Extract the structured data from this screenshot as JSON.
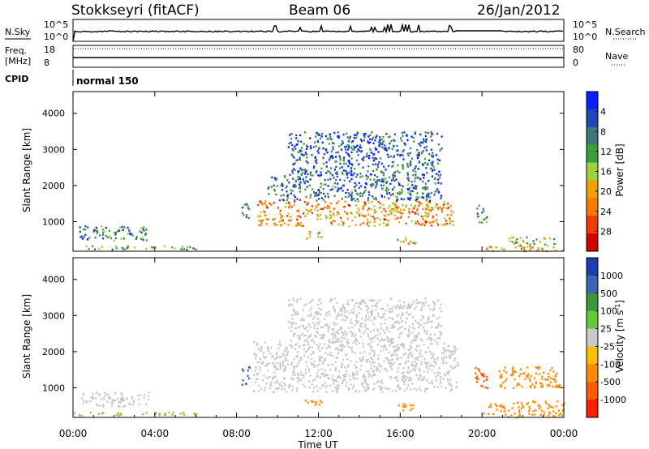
{
  "header": {
    "station": "Stokkseyri (fitACF)",
    "beam": "Beam 06",
    "date": "26/Jan/2012"
  },
  "panels": {
    "nsky": {
      "label": "N.Sky",
      "right_label": "N.Search",
      "ticks_left": [
        "10^5",
        "10^0"
      ],
      "ticks_right": [
        "10^5",
        "10^0"
      ]
    },
    "freq": {
      "label_top": "Freq.",
      "label_bottom": "[MHz]",
      "ticks_left": [
        "18",
        "8"
      ],
      "ticks_right": [
        "80",
        "0"
      ],
      "right_label": "Nave"
    },
    "cpid": {
      "label": "CPID",
      "value": "normal 150"
    }
  },
  "chart_data": [
    {
      "type": "heatmap",
      "title": "",
      "ylabel": "Slant Range [km]",
      "xlabel": "",
      "ylim": [
        180,
        4600
      ],
      "yticks": [
        1000,
        2000,
        3000,
        4000
      ],
      "xlim": [
        0,
        24
      ],
      "colorbar": {
        "label": "Power [dB]",
        "ticks": [
          "4",
          "8",
          "12",
          "16",
          "20",
          "24",
          "28"
        ],
        "colors": [
          "#0a1eff",
          "#1e46b4",
          "#3c7878",
          "#3ca03c",
          "#a0d23c",
          "#f0a000",
          "#ff7800",
          "#f03c00",
          "#d20000"
        ]
      },
      "regions": [
        {
          "t": [
            0.3,
            3.7
          ],
          "r": [
            500,
            900
          ],
          "v": 0.25
        },
        {
          "t": [
            0.0,
            6.0
          ],
          "r": [
            250,
            350
          ],
          "v": 0.35
        },
        {
          "t": [
            8.2,
            8.6
          ],
          "r": [
            1100,
            1600
          ],
          "v": 0.3
        },
        {
          "t": [
            9.0,
            18.6
          ],
          "r": [
            900,
            1600
          ],
          "v": 0.7
        },
        {
          "t": [
            9.5,
            18.0
          ],
          "r": [
            1600,
            2300
          ],
          "v": 0.2
        },
        {
          "t": [
            10.5,
            18.0
          ],
          "r": [
            2300,
            3500
          ],
          "v": 0.15
        },
        {
          "t": [
            11.3,
            12.2
          ],
          "r": [
            550,
            750
          ],
          "v": 0.6
        },
        {
          "t": [
            15.8,
            16.8
          ],
          "r": [
            400,
            600
          ],
          "v": 0.6
        },
        {
          "t": [
            19.7,
            20.2
          ],
          "r": [
            1000,
            1500
          ],
          "v": 0.3
        },
        {
          "t": [
            21.3,
            23.7
          ],
          "r": [
            350,
            600
          ],
          "v": 0.45
        },
        {
          "t": [
            20.0,
            24.0
          ],
          "r": [
            200,
            330
          ],
          "v": 0.55
        }
      ]
    },
    {
      "type": "heatmap",
      "title": "",
      "ylabel": "Slant Range [km]",
      "xlabel": "Time UT",
      "ylim": [
        180,
        4600
      ],
      "yticks": [
        1000,
        2000,
        3000,
        4000
      ],
      "xlim": [
        0,
        24
      ],
      "xticks": [
        "00:00",
        "04:00",
        "08:00",
        "12:00",
        "16:00",
        "20:00",
        "00:00"
      ],
      "colorbar": {
        "label": "Velocity [m s^-1]",
        "ticks": [
          "1000",
          "500",
          "100",
          "25",
          "-25",
          "-100",
          "-500",
          "-1000"
        ],
        "colors": [
          "#1e3cb4",
          "#3c64b4",
          "#3c963c",
          "#64c83c",
          "#c8c8c8",
          "#ffbe00",
          "#ff8c00",
          "#ff5a00",
          "#ff1e00"
        ]
      },
      "regions": [
        {
          "t": [
            0.3,
            3.7
          ],
          "r": [
            500,
            900
          ],
          "v": "#c8c8c8"
        },
        {
          "t": [
            0.0,
            6.0
          ],
          "r": [
            250,
            350
          ],
          "v": "#8cc83c"
        },
        {
          "t": [
            8.2,
            8.6
          ],
          "r": [
            1100,
            1600
          ],
          "v": "#3c64b4"
        },
        {
          "t": [
            8.8,
            18.8
          ],
          "r": [
            900,
            2300
          ],
          "v": "#c8c8c8"
        },
        {
          "t": [
            10.5,
            18.0
          ],
          "r": [
            2300,
            3500
          ],
          "v": "#c8c8c8"
        },
        {
          "t": [
            11.3,
            12.2
          ],
          "r": [
            550,
            750
          ],
          "v": "#ff8c00"
        },
        {
          "t": [
            15.8,
            16.8
          ],
          "r": [
            400,
            600
          ],
          "v": "#ff8c00"
        },
        {
          "t": [
            19.6,
            20.3
          ],
          "r": [
            1000,
            1600
          ],
          "v": "#ff5a00"
        },
        {
          "t": [
            20.8,
            23.8
          ],
          "r": [
            1000,
            1600
          ],
          "v": "#ff8c00"
        },
        {
          "t": [
            20.3,
            24.0
          ],
          "r": [
            350,
            650
          ],
          "v": "#ff8c00"
        },
        {
          "t": [
            20.0,
            24.0
          ],
          "r": [
            200,
            320
          ],
          "v": "#ff8c00"
        }
      ]
    }
  ]
}
